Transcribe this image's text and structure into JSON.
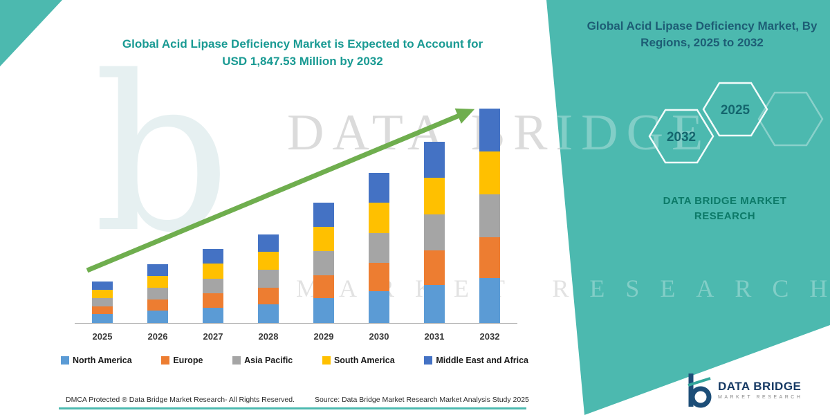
{
  "title": {
    "line1": "Global Acid Lipase Deficiency Market is Expected to Account for",
    "line2": "USD 1,847.53 Million by 2032"
  },
  "side_panel": {
    "heading": "Global Acid Lipase Deficiency Market, By Regions, 2025 to 2032",
    "hexagons": [
      {
        "label": "2032"
      },
      {
        "label": "2025"
      }
    ],
    "brand": "DATA BRIDGE MARKET RESEARCH",
    "bg_color": "#4cb9af"
  },
  "watermark": {
    "title": "DATA BRIDGE",
    "subtitle": "MARKET RESEARCH",
    "monogram": "b"
  },
  "chart_data": {
    "type": "bar",
    "stacked": true,
    "title": "Global Acid Lipase Deficiency Market is Expected to Account for USD 1,847.53 Million by 2032",
    "unit": "USD Million",
    "categories": [
      "2025",
      "2026",
      "2027",
      "2028",
      "2029",
      "2030",
      "2031",
      "2032"
    ],
    "series": [
      {
        "name": "North America",
        "color": "#5B9BD5",
        "values": [
          76,
          106,
          134,
          161,
          217,
          272,
          329,
          388
        ]
      },
      {
        "name": "Europe",
        "color": "#ED7D31",
        "values": [
          68,
          96,
          122,
          145,
          197,
          246,
          297,
          351
        ]
      },
      {
        "name": "Asia Pacific",
        "color": "#A5A5A5",
        "values": [
          72,
          101,
          128,
          153,
          207,
          259,
          313,
          369.53
        ]
      },
      {
        "name": "South America",
        "color": "#FFC000",
        "values": [
          72,
          101,
          128,
          153,
          207,
          259,
          313,
          369
        ]
      },
      {
        "name": "Middle East and Africa",
        "color": "#4472C4",
        "values": [
          72,
          101,
          128,
          153,
          207,
          259,
          313,
          370
        ]
      }
    ],
    "totals": [
      360,
      505,
      640,
      765,
      1035,
      1295,
      1565,
      1847.53
    ],
    "ylim": [
      0,
      1900
    ],
    "grid": false,
    "legend_position": "bottom",
    "annotation": "growth arrow trending upward 2025 to 2032",
    "arrow_color": "#6fae4e"
  },
  "footer": {
    "left": "DMCA Protected ® Data Bridge Market Research-  All Rights Reserved.",
    "source": "Source: Data Bridge Market Research  Market Analysis Study 2025"
  },
  "logo": {
    "name": "DATA BRIDGE",
    "sub": "MARKET RESEARCH"
  },
  "colors": {
    "panel_teal": "#4cb9af",
    "title_teal": "#199a93",
    "heading_navy": "#1d5d75",
    "brand_green": "#0c7a68",
    "arrow_green": "#6fae4e"
  }
}
